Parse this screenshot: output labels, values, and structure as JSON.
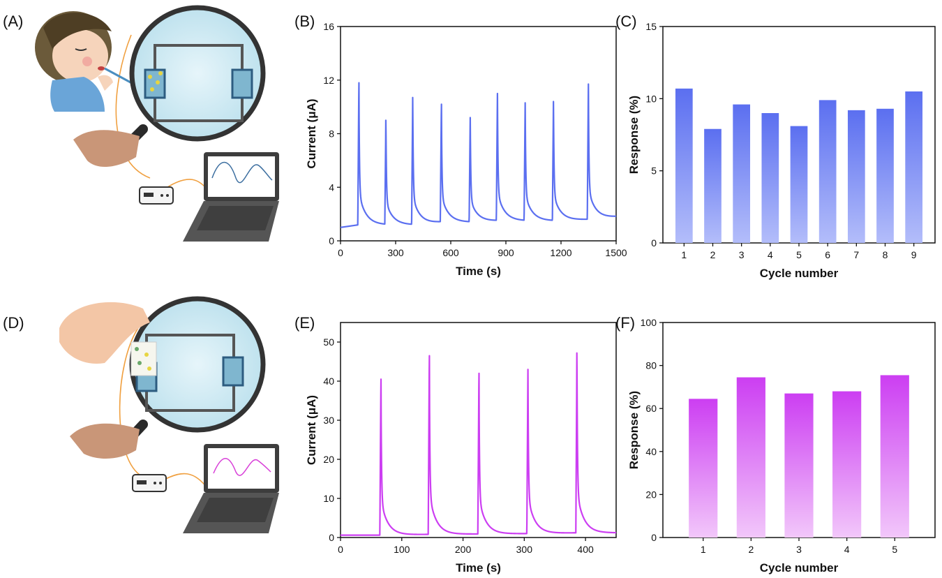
{
  "panels": {
    "a": "(A)",
    "b": "(B)",
    "c": "(C)",
    "d": "(D)",
    "e": "(E)",
    "f": "(F)"
  },
  "colors": {
    "blue": "#5b6ff0",
    "magenta": "#cc3ef2",
    "skin": "#f3c6a6",
    "laptop": "#4a4a4a",
    "lens_glass": "#d7eef6",
    "wire": "#f0a040"
  },
  "icons": [
    "child-drinking-illustration",
    "magnifier-icon",
    "hand-icon",
    "circuit-diagram",
    "sensor-chip-icon",
    "device-box-icon",
    "laptop-icon",
    "fingertip-icon"
  ],
  "chart_data": [
    {
      "id": "b",
      "type": "line",
      "xlabel": "Time (s)",
      "ylabel": "Current (μA)",
      "xlim": [
        0,
        1500
      ],
      "ylim": [
        0,
        16
      ],
      "xticks": [
        0,
        300,
        600,
        900,
        1200,
        1500
      ],
      "yticks": [
        0,
        4,
        8,
        12,
        16
      ],
      "baseline": [
        [
          0,
          1.0
        ],
        [
          100,
          1.2
        ],
        [
          240,
          1.2
        ],
        [
          390,
          1.2
        ],
        [
          545,
          1.4
        ],
        [
          700,
          1.4
        ],
        [
          850,
          1.5
        ],
        [
          1000,
          1.5
        ],
        [
          1155,
          1.5
        ],
        [
          1345,
          1.6
        ],
        [
          1500,
          1.8
        ]
      ],
      "peaks": [
        {
          "x": 100,
          "y": 11.8,
          "decay_to": 1.2
        },
        {
          "x": 247,
          "y": 9.0,
          "decay_to": 1.2
        },
        {
          "x": 393,
          "y": 10.7,
          "decay_to": 1.3
        },
        {
          "x": 549,
          "y": 10.2,
          "decay_to": 1.4
        },
        {
          "x": 706,
          "y": 9.2,
          "decay_to": 1.4
        },
        {
          "x": 854,
          "y": 11.0,
          "decay_to": 1.5
        },
        {
          "x": 1005,
          "y": 10.3,
          "decay_to": 1.5
        },
        {
          "x": 1159,
          "y": 10.4,
          "decay_to": 1.6
        },
        {
          "x": 1349,
          "y": 11.7,
          "decay_to": 1.8
        }
      ]
    },
    {
      "id": "c",
      "type": "bar",
      "xlabel": "Cycle number",
      "ylabel": "Response (%)",
      "categories": [
        "1",
        "2",
        "3",
        "4",
        "5",
        "6",
        "7",
        "8",
        "9"
      ],
      "values": [
        10.7,
        7.9,
        9.6,
        9.0,
        8.1,
        9.9,
        9.2,
        9.3,
        10.5
      ],
      "ylim": [
        0,
        15
      ],
      "yticks": [
        0,
        5,
        10,
        15
      ]
    },
    {
      "id": "e",
      "type": "line",
      "xlabel": "Time (s)",
      "ylabel": "Current (μA)",
      "xlim": [
        0,
        450
      ],
      "ylim": [
        0,
        55
      ],
      "xticks": [
        0,
        100,
        200,
        300,
        400
      ],
      "yticks": [
        0,
        10,
        20,
        30,
        40,
        50
      ],
      "baseline": [
        [
          0,
          0.6
        ],
        [
          65,
          0.6
        ],
        [
          145,
          0.8
        ],
        [
          225,
          0.9
        ],
        [
          305,
          1.0
        ],
        [
          385,
          1.2
        ],
        [
          450,
          1.2
        ]
      ],
      "peaks": [
        {
          "x": 66,
          "y": 40.5,
          "decay_to": 0.8
        },
        {
          "x": 145,
          "y": 46.5,
          "decay_to": 0.9
        },
        {
          "x": 226,
          "y": 42.0,
          "decay_to": 1.0
        },
        {
          "x": 306,
          "y": 43.0,
          "decay_to": 1.1
        },
        {
          "x": 386,
          "y": 47.2,
          "decay_to": 1.2
        }
      ]
    },
    {
      "id": "f",
      "type": "bar",
      "xlabel": "Cycle number",
      "ylabel": "Response (%)",
      "categories": [
        "1",
        "2",
        "3",
        "4",
        "5"
      ],
      "values": [
        64.5,
        74.5,
        67.0,
        68.0,
        75.5
      ],
      "ylim": [
        0,
        100
      ],
      "yticks": [
        0,
        20,
        40,
        60,
        80,
        100
      ]
    }
  ]
}
